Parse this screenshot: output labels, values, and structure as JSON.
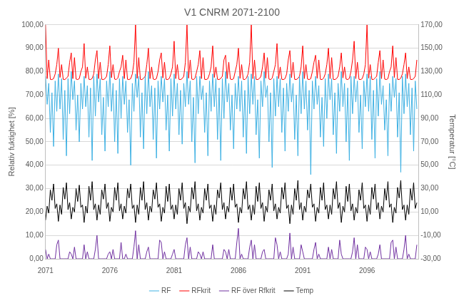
{
  "chart_data": {
    "type": "line",
    "title": "V1 CNRM 2071-2100",
    "ylabel": "Relativ fuktighet [%]",
    "y2label": "Temperatur [°C]",
    "legend": "bottom",
    "grid": true,
    "xlim": [
      2071,
      2100
    ],
    "xticks": [
      2071,
      2076,
      2081,
      2086,
      2091,
      2096
    ],
    "ylim": [
      0,
      100
    ],
    "yticks": [
      {
        "value": 0,
        "label": "0,00"
      },
      {
        "value": 10,
        "label": "10,00"
      },
      {
        "value": 20,
        "label": "20,00"
      },
      {
        "value": 30,
        "label": "30,00"
      },
      {
        "value": 40,
        "label": "40,00"
      },
      {
        "value": 50,
        "label": "50,00"
      },
      {
        "value": 60,
        "label": "60,00"
      },
      {
        "value": 70,
        "label": "70,00"
      },
      {
        "value": 80,
        "label": "80,00"
      },
      {
        "value": 90,
        "label": "90,00"
      },
      {
        "value": 100,
        "label": "100,00"
      }
    ],
    "y2lim": [
      -30,
      170
    ],
    "y2ticks": [
      {
        "value": -30,
        "label": "-30,00"
      },
      {
        "value": -10,
        "label": "-10,00"
      },
      {
        "value": 10,
        "label": "10,00"
      },
      {
        "value": 30,
        "label": "30,00"
      },
      {
        "value": 50,
        "label": "50,00"
      },
      {
        "value": 70,
        "label": "70,00"
      },
      {
        "value": 90,
        "label": "90,00"
      },
      {
        "value": 110,
        "label": "110,00"
      },
      {
        "value": 130,
        "label": "130,00"
      },
      {
        "value": 150,
        "label": "150,00"
      },
      {
        "value": 170,
        "label": "170,00"
      }
    ],
    "x": [
      2071,
      2071.125,
      2071.25,
      2071.375,
      2071.5,
      2071.625,
      2071.75,
      2071.875,
      2072,
      2072.125,
      2072.25,
      2072.375,
      2072.5,
      2072.625,
      2072.75,
      2072.875,
      2073,
      2073.125,
      2073.25,
      2073.375,
      2073.5,
      2073.625,
      2073.75,
      2073.875,
      2074,
      2074.125,
      2074.25,
      2074.375,
      2074.5,
      2074.625,
      2074.75,
      2074.875,
      2075,
      2075.125,
      2075.25,
      2075.375,
      2075.5,
      2075.625,
      2075.75,
      2075.875,
      2076,
      2076.125,
      2076.25,
      2076.375,
      2076.5,
      2076.625,
      2076.75,
      2076.875,
      2077,
      2077.125,
      2077.25,
      2077.375,
      2077.5,
      2077.625,
      2077.75,
      2077.875,
      2078,
      2078.125,
      2078.25,
      2078.375,
      2078.5,
      2078.625,
      2078.75,
      2078.875,
      2079,
      2079.125,
      2079.25,
      2079.375,
      2079.5,
      2079.625,
      2079.75,
      2079.875,
      2080,
      2080.125,
      2080.25,
      2080.375,
      2080.5,
      2080.625,
      2080.75,
      2080.875,
      2081,
      2081.125,
      2081.25,
      2081.375,
      2081.5,
      2081.625,
      2081.75,
      2081.875,
      2082,
      2082.125,
      2082.25,
      2082.375,
      2082.5,
      2082.625,
      2082.75,
      2082.875,
      2083,
      2083.125,
      2083.25,
      2083.375,
      2083.5,
      2083.625,
      2083.75,
      2083.875,
      2084,
      2084.125,
      2084.25,
      2084.375,
      2084.5,
      2084.625,
      2084.75,
      2084.875,
      2085,
      2085.125,
      2085.25,
      2085.375,
      2085.5,
      2085.625,
      2085.75,
      2085.875,
      2086,
      2086.125,
      2086.25,
      2086.375,
      2086.5,
      2086.625,
      2086.75,
      2086.875,
      2087,
      2087.125,
      2087.25,
      2087.375,
      2087.5,
      2087.625,
      2087.75,
      2087.875,
      2088,
      2088.125,
      2088.25,
      2088.375,
      2088.5,
      2088.625,
      2088.75,
      2088.875,
      2089,
      2089.125,
      2089.25,
      2089.375,
      2089.5,
      2089.625,
      2089.75,
      2089.875,
      2090,
      2090.125,
      2090.25,
      2090.375,
      2090.5,
      2090.625,
      2090.75,
      2090.875,
      2091,
      2091.125,
      2091.25,
      2091.375,
      2091.5,
      2091.625,
      2091.75,
      2091.875,
      2092,
      2092.125,
      2092.25,
      2092.375,
      2092.5,
      2092.625,
      2092.75,
      2092.875,
      2093,
      2093.125,
      2093.25,
      2093.375,
      2093.5,
      2093.625,
      2093.75,
      2093.875,
      2094,
      2094.125,
      2094.25,
      2094.375,
      2094.5,
      2094.625,
      2094.75,
      2094.875,
      2095,
      2095.125,
      2095.25,
      2095.375,
      2095.5,
      2095.625,
      2095.75,
      2095.875,
      2096,
      2096.125,
      2096.25,
      2096.375,
      2096.5,
      2096.625,
      2096.75,
      2096.875,
      2097,
      2097.125,
      2097.25,
      2097.375,
      2097.5,
      2097.625,
      2097.75,
      2097.875,
      2098,
      2098.125,
      2098.25,
      2098.375,
      2098.5,
      2098.625,
      2098.75,
      2098.875,
      2099,
      2099.125,
      2099.25,
      2099.375,
      2099.5,
      2099.625,
      2099.75,
      2099.875
    ],
    "series": [
      {
        "name": "RF",
        "color": "#3fb1e3",
        "values": [
          78,
          66,
          75,
          54,
          71,
          48,
          76,
          63,
          79,
          64,
          77,
          51,
          72,
          44,
          77,
          62,
          80,
          68,
          76,
          55,
          70,
          50,
          75,
          64,
          78,
          65,
          74,
          52,
          73,
          42,
          78,
          61,
          79,
          67,
          77,
          53,
          69,
          46,
          76,
          65,
          80,
          63,
          75,
          50,
          72,
          45,
          77,
          60,
          78,
          66,
          76,
          54,
          68,
          40,
          75,
          63,
          79,
          69,
          78,
          52,
          71,
          47,
          78,
          62,
          80,
          65,
          74,
          51,
          73,
          43,
          76,
          64,
          78,
          67,
          77,
          55,
          70,
          46,
          77,
          61,
          79,
          64,
          75,
          53,
          72,
          49,
          75,
          65,
          80,
          66,
          76,
          50,
          69,
          41,
          78,
          62,
          78,
          68,
          74,
          54,
          71,
          44,
          76,
          63,
          79,
          65,
          77,
          51,
          73,
          42,
          77,
          60,
          80,
          67,
          75,
          55,
          70,
          47,
          75,
          64,
          78,
          63,
          76,
          52,
          72,
          45,
          78,
          62,
          79,
          66,
          78,
          53,
          68,
          43,
          76,
          65,
          80,
          69,
          74,
          50,
          71,
          39,
          77,
          61,
          78,
          65,
          77,
          54,
          73,
          46,
          75,
          63,
          79,
          67,
          75,
          51,
          70,
          44,
          78,
          62,
          80,
          64,
          76,
          55,
          72,
          36,
          76,
          64,
          78,
          66,
          74,
          52,
          69,
          48,
          77,
          60,
          79,
          68,
          77,
          53,
          71,
          45,
          75,
          63,
          80,
          65,
          75,
          50,
          73,
          42,
          78,
          62,
          78,
          67,
          76,
          54,
          70,
          47,
          76,
          65,
          79,
          63,
          78,
          51,
          72,
          43,
          77,
          61,
          80,
          66,
          74,
          55,
          68,
          44,
          75,
          63,
          78,
          69,
          77,
          52,
          71,
          37,
          78,
          62,
          79,
          65,
          75,
          53,
          73,
          46,
          76,
          64
        ]
      },
      {
        "name": "RFkrit",
        "color": "#ff0000",
        "values": [
          100,
          77,
          85,
          76.7,
          76.6,
          77,
          79,
          83,
          90,
          77.5,
          83,
          76.7,
          76.6,
          77.2,
          78,
          84,
          88,
          77,
          86,
          76.8,
          76.6,
          77,
          80,
          82,
          92,
          77.2,
          82,
          76.7,
          76.6,
          77.1,
          79,
          85,
          89,
          77,
          84,
          76.7,
          76.6,
          77,
          78,
          83,
          91,
          77.4,
          83,
          76.8,
          76.6,
          77.3,
          80,
          82,
          87,
          77,
          85,
          76.7,
          76.6,
          77,
          79,
          84,
          100,
          77.1,
          86,
          76.7,
          76.6,
          77.2,
          78,
          83,
          90,
          77,
          82,
          76.8,
          76.6,
          77,
          80,
          85,
          88,
          77.3,
          84,
          76.7,
          76.6,
          77.1,
          79,
          82,
          93,
          77,
          83,
          76.7,
          76.6,
          77,
          78,
          84,
          100,
          77.2,
          85,
          76.8,
          76.6,
          77.2,
          80,
          83,
          89,
          77,
          86,
          76.7,
          76.6,
          77,
          79,
          82,
          91,
          77.5,
          82,
          76.7,
          76.6,
          77.1,
          78,
          85,
          87,
          77,
          84,
          76.8,
          76.6,
          77,
          80,
          83,
          90,
          77.1,
          83,
          76.7,
          76.6,
          77.3,
          79,
          84,
          100,
          77,
          85,
          76.7,
          76.6,
          77,
          78,
          82,
          88,
          77.2,
          86,
          76.8,
          76.6,
          77.2,
          80,
          83,
          92,
          77,
          82,
          76.7,
          76.6,
          77,
          79,
          85,
          89,
          77.4,
          84,
          76.7,
          76.6,
          77.1,
          78,
          82,
          91,
          77,
          83,
          76.8,
          76.6,
          77,
          80,
          84,
          87,
          77.1,
          85,
          76.7,
          76.6,
          77.2,
          79,
          83,
          90,
          77,
          86,
          76.7,
          76.6,
          77,
          78,
          82,
          88,
          77.3,
          82,
          76.8,
          76.6,
          77.1,
          80,
          85,
          93,
          77,
          84,
          76.7,
          76.6,
          77,
          79,
          83,
          100,
          77.2,
          83,
          76.7,
          76.6,
          77.3,
          78,
          84,
          89,
          77,
          85,
          76.8,
          76.6,
          77,
          80,
          82,
          91,
          77.5,
          86,
          76.7,
          76.6,
          77.2,
          79,
          83,
          88,
          77,
          82,
          76.7,
          76.6,
          77,
          78,
          85
        ]
      },
      {
        "name": "RF över Rfkrit",
        "color": "#7030a0",
        "values": [
          4,
          0,
          2,
          0,
          0,
          0,
          0,
          6,
          8,
          0,
          0,
          0,
          0,
          0,
          0,
          3,
          2,
          0,
          5,
          0,
          0,
          0,
          0,
          0,
          6,
          0,
          3,
          0,
          0,
          0,
          0,
          4,
          10,
          0,
          0,
          0,
          0,
          0,
          0,
          2,
          3,
          0,
          4,
          0,
          0,
          0,
          0,
          7,
          0,
          0,
          2,
          0,
          0,
          0,
          0,
          5,
          12,
          0,
          6,
          0,
          0,
          0,
          0,
          3,
          5,
          0,
          0,
          0,
          0,
          0,
          0,
          8,
          7,
          0,
          3,
          0,
          0,
          0,
          0,
          2,
          4,
          0,
          0,
          0,
          0,
          0,
          0,
          6,
          9,
          0,
          5,
          0,
          0,
          0,
          0,
          3,
          2,
          0,
          3,
          0,
          0,
          0,
          0,
          0,
          6,
          0,
          0,
          0,
          0,
          0,
          0,
          4,
          3,
          0,
          4,
          0,
          0,
          0,
          0,
          7,
          13,
          0,
          2,
          0,
          0,
          0,
          0,
          5,
          8,
          0,
          6,
          0,
          0,
          0,
          0,
          3,
          4,
          0,
          0,
          0,
          0,
          0,
          0,
          9,
          6,
          0,
          3,
          0,
          0,
          0,
          0,
          2,
          11,
          0,
          5,
          0,
          0,
          0,
          0,
          6,
          3,
          0,
          0,
          0,
          0,
          0,
          0,
          4,
          7,
          0,
          2,
          0,
          0,
          0,
          0,
          0,
          5,
          0,
          4,
          0,
          0,
          0,
          0,
          8,
          2,
          0,
          0,
          0,
          0,
          0,
          0,
          3,
          9,
          0,
          6,
          0,
          0,
          0,
          0,
          5,
          4,
          0,
          3,
          0,
          0,
          0,
          0,
          2,
          6,
          0,
          0,
          0,
          0,
          0,
          0,
          7,
          8,
          0,
          5,
          0,
          0,
          0,
          0,
          4,
          10,
          0,
          2,
          0,
          0,
          0,
          0,
          6
        ]
      },
      {
        "name": "Temp",
        "color": "#000000",
        "axis": "y2",
        "values": [
          3,
          15,
          9,
          29,
          20,
          34,
          13,
          17,
          2,
          16,
          8,
          31,
          21,
          35,
          12,
          18,
          4,
          14,
          10,
          30,
          19,
          33,
          14,
          16,
          1,
          15,
          9,
          32,
          20,
          36,
          12,
          17,
          3,
          16,
          8,
          29,
          21,
          34,
          13,
          18,
          2,
          14,
          10,
          31,
          20,
          35,
          11,
          17,
          4,
          15,
          9,
          30,
          22,
          34,
          13,
          16,
          1,
          16,
          8,
          31,
          20,
          36,
          12,
          18,
          3,
          15,
          10,
          29,
          21,
          35,
          14,
          17,
          2,
          14,
          9,
          32,
          19,
          34,
          12,
          16,
          4,
          16,
          8,
          30,
          20,
          35,
          13,
          18,
          0,
          15,
          10,
          31,
          21,
          36,
          11,
          17,
          3,
          14,
          9,
          30,
          20,
          34,
          13,
          16,
          2,
          16,
          8,
          29,
          22,
          35,
          12,
          18,
          4,
          15,
          10,
          31,
          20,
          34,
          14,
          17,
          1,
          14,
          9,
          30,
          21,
          36,
          12,
          16,
          3,
          16,
          8,
          32,
          19,
          35,
          13,
          18,
          2,
          15,
          10,
          29,
          20,
          34,
          11,
          17,
          4,
          14,
          9,
          31,
          21,
          35,
          13,
          16,
          0,
          16,
          8,
          30,
          20,
          37,
          12,
          18,
          3,
          15,
          10,
          29,
          22,
          34,
          14,
          17,
          2,
          14,
          9,
          31,
          20,
          35,
          12,
          16,
          4,
          16,
          8,
          30,
          21,
          36,
          13,
          18,
          1,
          15,
          10,
          32,
          19,
          34,
          11,
          17,
          3,
          14,
          9,
          29,
          20,
          35,
          13,
          16,
          2,
          16,
          8,
          31,
          21,
          34,
          12,
          18,
          4,
          15,
          10,
          30,
          20,
          36,
          14,
          17,
          1,
          14,
          9,
          31,
          22,
          37,
          12,
          16,
          3,
          16,
          8,
          30,
          20,
          35,
          13,
          18
        ]
      }
    ]
  }
}
